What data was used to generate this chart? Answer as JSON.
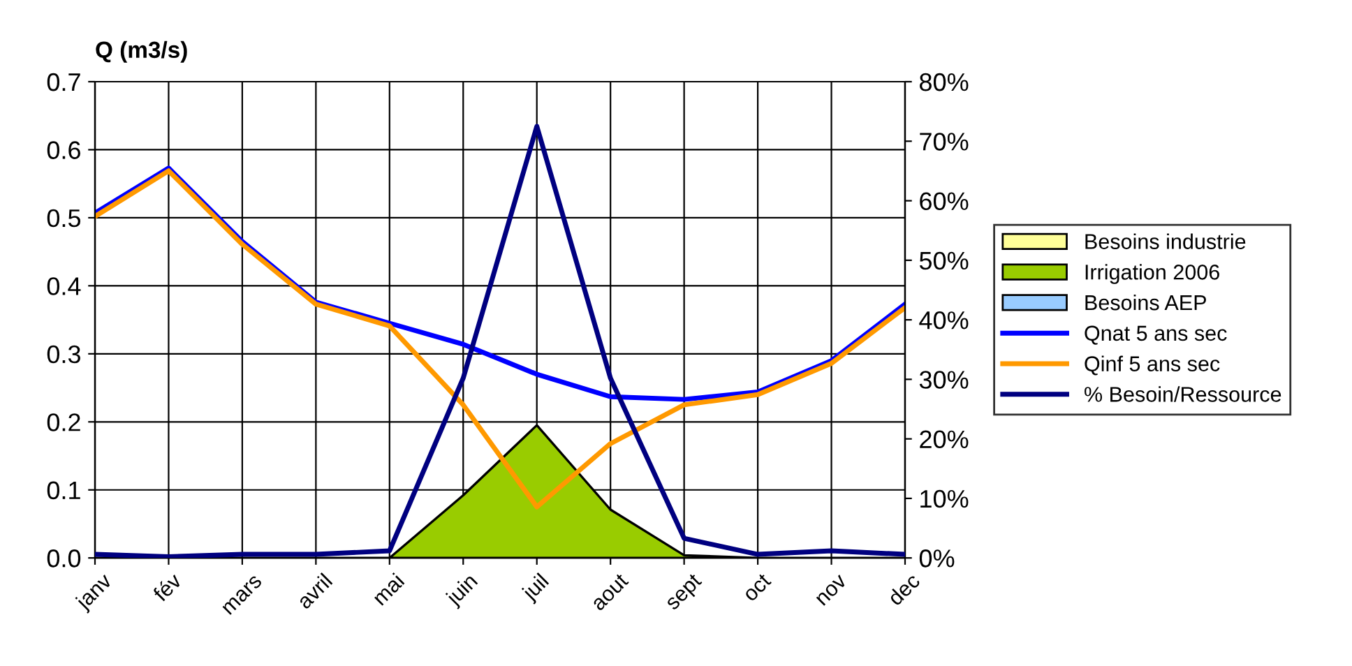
{
  "chart_data": {
    "type": "area",
    "ylabel": "Q (m3/s)",
    "categories": [
      "janv",
      "fév",
      "mars",
      "avril",
      "mai",
      "juin",
      "juil",
      "aout",
      "sept",
      "oct",
      "nov",
      "dec"
    ],
    "series": [
      {
        "name": "Besoins industrie",
        "color": "#ffff99",
        "values": [
          null,
          null,
          null,
          null,
          null,
          null,
          null,
          null,
          null,
          null,
          null,
          null
        ]
      },
      {
        "name": "Irrigation 2006",
        "color": "#99cc00",
        "values": [
          0,
          0,
          0,
          0,
          0,
          0.092,
          0.195,
          0.071,
          0.004,
          0,
          0,
          0
        ]
      },
      {
        "name": "Besoins AEP",
        "color": "#99ccff",
        "values": [
          null,
          null,
          null,
          null,
          null,
          null,
          null,
          null,
          null,
          null,
          null,
          null
        ]
      },
      {
        "name": "Qnat 5 ans sec",
        "color": "#0000ff",
        "type": "line",
        "values": [
          0.507,
          0.573,
          0.465,
          0.376,
          0.345,
          0.314,
          0.27,
          0.237,
          0.233,
          0.244,
          0.29,
          0.373
        ]
      },
      {
        "name": "Qinf 5 ans sec",
        "color": "#ff9900",
        "type": "line",
        "values": [
          0.502,
          0.569,
          0.461,
          0.373,
          0.341,
          0.225,
          0.075,
          0.168,
          0.225,
          0.24,
          0.286,
          0.368
        ]
      },
      {
        "name": "% Besoin/Ressource",
        "color": "#000080",
        "type": "line",
        "axis": "y2",
        "values": [
          0.6,
          0.2,
          0.6,
          0.6,
          1.2,
          30.2,
          72.5,
          30.2,
          3.3,
          0.6,
          1.2,
          0.6
        ]
      }
    ],
    "ylim": [
      0,
      0.7
    ],
    "yticks": [
      {
        "value": 0,
        "label": "0.0"
      },
      0.1,
      0.2,
      0.3,
      0.4,
      0.5,
      0.6,
      0.7
    ],
    "y2lim": [
      0,
      80
    ],
    "y2ticks": [
      {
        "value": 0,
        "label": "0%"
      },
      {
        "value": 10,
        "label": "10%"
      },
      {
        "value": 20,
        "label": "20%"
      },
      {
        "value": 30,
        "label": "30%"
      },
      {
        "value": 40,
        "label": "40%"
      },
      {
        "value": 50,
        "label": "50%"
      },
      {
        "value": 60,
        "label": "60%"
      },
      {
        "value": 70,
        "label": "70%"
      },
      {
        "value": 80,
        "label": "80%"
      }
    ],
    "grid": true,
    "legend": "right",
    "marker": "none",
    "line_style": "solid"
  }
}
